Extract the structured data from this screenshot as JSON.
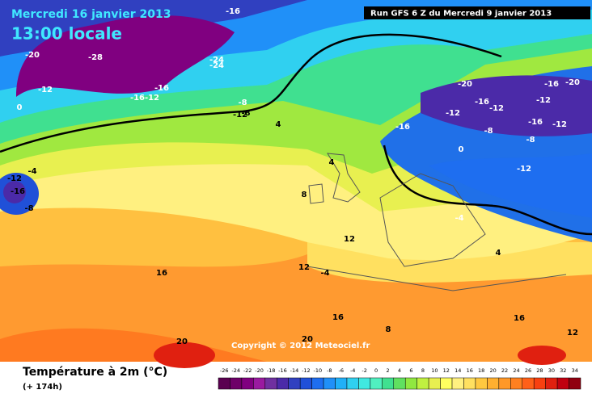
{
  "header": {
    "date": "Mercredi 16 janvier 2013",
    "time": "13:00 locale",
    "run": "Run GFS 6 Z du Mercredi 9 janvier 2013"
  },
  "copyright": "Copyright © 2012 Meteociel.fr",
  "footer": {
    "title": "Température à 2m (°C)",
    "lead": "(+ 174h)"
  },
  "map": {
    "labels": [
      "-16",
      "-20",
      "-28",
      "-24",
      "-24",
      "-16",
      "-16",
      "-12",
      "-8",
      "-12",
      "0",
      "-12",
      "-4",
      "4",
      "-12",
      "-16",
      "-8",
      "4",
      "8",
      "12",
      "12",
      "16",
      "20",
      "20",
      "-20",
      "-16",
      "-20",
      "-16",
      "-12",
      "-12",
      "-16",
      "-12",
      "-8",
      "-16",
      "-12",
      "-8",
      "-12",
      "0",
      "-4",
      "4",
      "8",
      "16",
      "16",
      "12",
      "-4",
      "-8"
    ]
  },
  "legend": {
    "ticks": [
      -26,
      -24,
      -22,
      -20,
      -18,
      -16,
      -14,
      -12,
      -10,
      -8,
      -6,
      -4,
      -2,
      0,
      2,
      4,
      6,
      8,
      10,
      12,
      14,
      16,
      18,
      20,
      22,
      24,
      26,
      28,
      30,
      32,
      34
    ],
    "colors": [
      "#5a0050",
      "#6e0068",
      "#800080",
      "#9a1aa0",
      "#7030a0",
      "#4b2aa8",
      "#3040c0",
      "#2050d8",
      "#1e6ef0",
      "#2090f8",
      "#20b0f8",
      "#30d0f0",
      "#40e8e0",
      "#50f0c0",
      "#40e090",
      "#60e060",
      "#90e840",
      "#c0f040",
      "#e8f050",
      "#ffff60",
      "#fff080",
      "#ffe060",
      "#ffc840",
      "#ffb030",
      "#ff9828",
      "#ff8020",
      "#ff6018",
      "#f84010",
      "#e02010",
      "#c00010",
      "#900010"
    ]
  }
}
